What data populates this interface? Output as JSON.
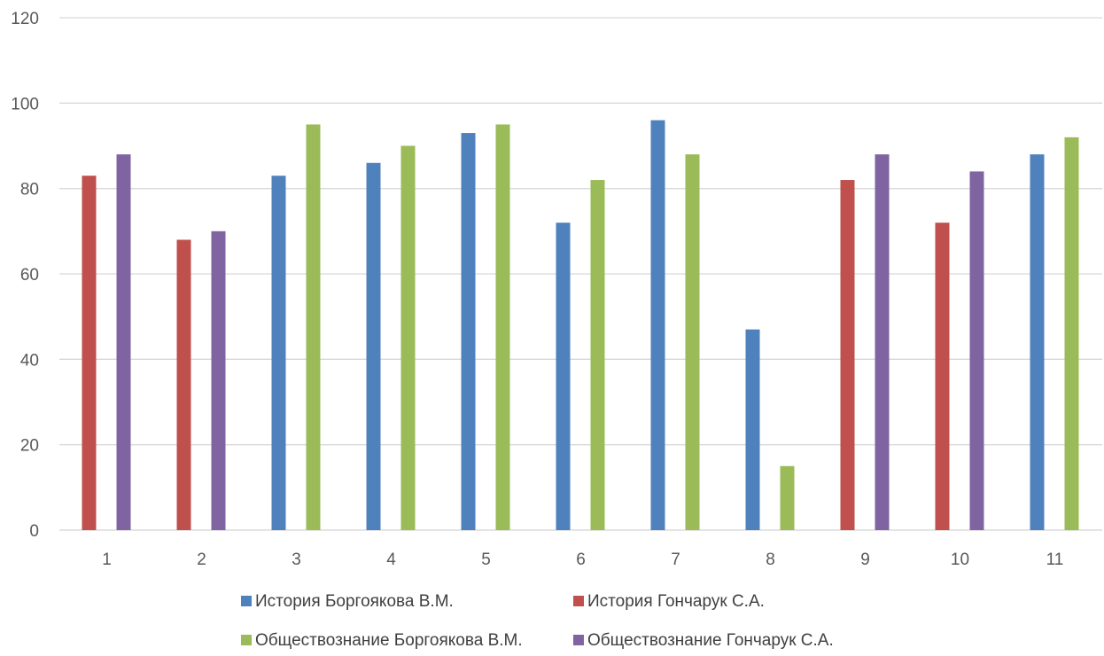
{
  "chart_data": {
    "type": "bar",
    "categories": [
      "1",
      "2",
      "3",
      "4",
      "5",
      "6",
      "7",
      "8",
      "9",
      "10",
      "11"
    ],
    "series": [
      {
        "name": "История Боргоякова В.М.",
        "color": "#4f81bd",
        "values": [
          null,
          null,
          83,
          86,
          93,
          72,
          96,
          47,
          null,
          null,
          88
        ]
      },
      {
        "name": "История Гончарук С.А.",
        "color": "#c0504d",
        "values": [
          83,
          68,
          null,
          null,
          null,
          null,
          null,
          null,
          82,
          72,
          null
        ]
      },
      {
        "name": "Обществознание Боргоякова В.М.",
        "color": "#9bbb59",
        "values": [
          null,
          null,
          95,
          90,
          95,
          82,
          88,
          15,
          null,
          null,
          92
        ]
      },
      {
        "name": "Обществознание Гончарук С.А.",
        "color": "#8064a2",
        "values": [
          88,
          70,
          null,
          null,
          null,
          null,
          null,
          null,
          88,
          84,
          null
        ]
      }
    ],
    "yticks": [
      "0",
      "20",
      "40",
      "60",
      "80",
      "100",
      "120"
    ],
    "ylim": [
      0,
      120
    ],
    "grid": true,
    "legend_position": "bottom"
  }
}
